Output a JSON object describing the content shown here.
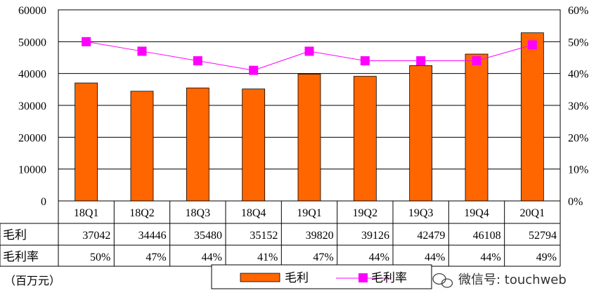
{
  "chart_data": {
    "type": "bar",
    "categories": [
      "18Q1",
      "18Q2",
      "18Q3",
      "18Q4",
      "19Q1",
      "19Q2",
      "19Q3",
      "19Q4",
      "20Q1"
    ],
    "series": [
      {
        "name": "毛利",
        "type": "bar",
        "axis": "left",
        "values": [
          37042,
          34446,
          35480,
          35152,
          39820,
          39126,
          42479,
          46108,
          52794
        ],
        "color": "#ff6600"
      },
      {
        "name": "毛利率",
        "type": "line",
        "axis": "right",
        "values": [
          50,
          47,
          44,
          41,
          47,
          44,
          44,
          44,
          49
        ],
        "color": "#ff00ff"
      }
    ],
    "y_left_ticks": [
      "60000",
      "50000",
      "40000",
      "30000",
      "20000",
      "10000",
      "0"
    ],
    "y_right_ticks": [
      "60%",
      "50%",
      "40%",
      "30%",
      "20%",
      "10%",
      "0%"
    ],
    "ylim_left": [
      0,
      60000
    ],
    "ylim_right": [
      0,
      60
    ],
    "table": {
      "row_labels": [
        "毛利",
        "毛利率"
      ],
      "rows": [
        [
          "37042",
          "34446",
          "35480",
          "35152",
          "39820",
          "39126",
          "42479",
          "46108",
          "52794"
        ],
        [
          "50%",
          "47%",
          "44%",
          "41%",
          "47%",
          "44%",
          "44%",
          "44%",
          "49%"
        ]
      ]
    },
    "legend": {
      "entries": [
        "毛利",
        "毛利率"
      ],
      "placement": "bottom"
    },
    "grid": true
  },
  "unit_label": "（百万元）",
  "watermark": "微信号: touchweb",
  "colors": {
    "bar": "#ff6600",
    "line": "#ff00ff",
    "axis": "#000000"
  }
}
